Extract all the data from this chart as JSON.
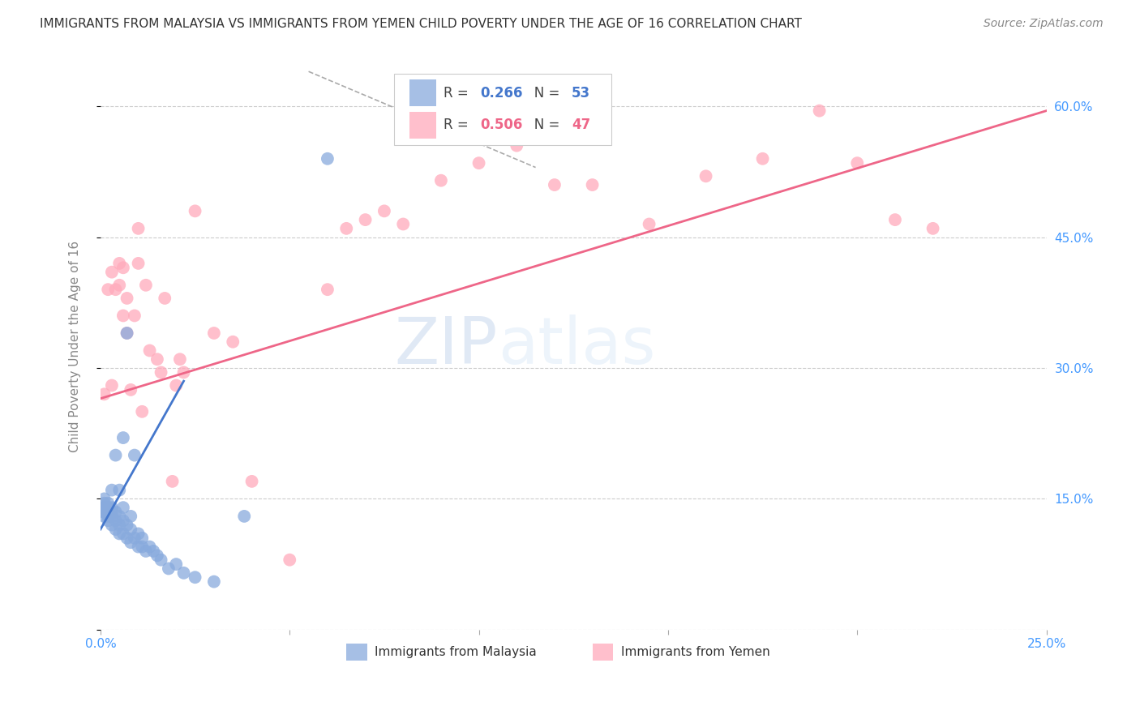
{
  "title": "IMMIGRANTS FROM MALAYSIA VS IMMIGRANTS FROM YEMEN CHILD POVERTY UNDER THE AGE OF 16 CORRELATION CHART",
  "source": "Source: ZipAtlas.com",
  "ylabel": "Child Poverty Under the Age of 16",
  "xlim": [
    0.0,
    0.25
  ],
  "ylim": [
    0.0,
    0.65
  ],
  "xticks": [
    0.0,
    0.05,
    0.1,
    0.15,
    0.2,
    0.25
  ],
  "xticklabels": [
    "0.0%",
    "",
    "",
    "",
    "",
    "25.0%"
  ],
  "yticks": [
    0.0,
    0.15,
    0.3,
    0.45,
    0.6
  ],
  "yticklabels": [
    "",
    "15.0%",
    "30.0%",
    "45.0%",
    "60.0%"
  ],
  "watermark_zip": "ZIP",
  "watermark_atlas": "atlas",
  "malaysia_color": "#88aadd",
  "yemen_color": "#ffaabb",
  "malaysia_line_color": "#4477cc",
  "yemen_line_color": "#ee6688",
  "malaysia_R": 0.266,
  "malaysia_N": 53,
  "yemen_R": 0.506,
  "yemen_N": 47,
  "malaysia_scatter_x": [
    0.0005,
    0.0008,
    0.001,
    0.001,
    0.001,
    0.001,
    0.001,
    0.002,
    0.002,
    0.002,
    0.002,
    0.002,
    0.003,
    0.003,
    0.003,
    0.003,
    0.003,
    0.004,
    0.004,
    0.004,
    0.004,
    0.005,
    0.005,
    0.005,
    0.005,
    0.006,
    0.006,
    0.006,
    0.006,
    0.007,
    0.007,
    0.007,
    0.008,
    0.008,
    0.008,
    0.009,
    0.009,
    0.01,
    0.01,
    0.011,
    0.011,
    0.012,
    0.013,
    0.014,
    0.015,
    0.016,
    0.018,
    0.02,
    0.022,
    0.025,
    0.03,
    0.038,
    0.06
  ],
  "malaysia_scatter_y": [
    0.135,
    0.14,
    0.13,
    0.135,
    0.14,
    0.145,
    0.15,
    0.125,
    0.13,
    0.135,
    0.14,
    0.145,
    0.12,
    0.13,
    0.135,
    0.14,
    0.16,
    0.115,
    0.125,
    0.135,
    0.2,
    0.11,
    0.12,
    0.13,
    0.16,
    0.11,
    0.125,
    0.14,
    0.22,
    0.105,
    0.12,
    0.34,
    0.1,
    0.115,
    0.13,
    0.105,
    0.2,
    0.095,
    0.11,
    0.095,
    0.105,
    0.09,
    0.095,
    0.09,
    0.085,
    0.08,
    0.07,
    0.075,
    0.065,
    0.06,
    0.055,
    0.13,
    0.54
  ],
  "yemen_scatter_x": [
    0.001,
    0.002,
    0.003,
    0.003,
    0.004,
    0.005,
    0.005,
    0.006,
    0.006,
    0.007,
    0.007,
    0.008,
    0.009,
    0.01,
    0.01,
    0.011,
    0.012,
    0.013,
    0.015,
    0.016,
    0.017,
    0.019,
    0.02,
    0.021,
    0.022,
    0.025,
    0.03,
    0.035,
    0.04,
    0.05,
    0.06,
    0.065,
    0.07,
    0.075,
    0.08,
    0.09,
    0.1,
    0.11,
    0.12,
    0.13,
    0.145,
    0.16,
    0.175,
    0.19,
    0.2,
    0.21,
    0.22
  ],
  "yemen_scatter_y": [
    0.27,
    0.39,
    0.28,
    0.41,
    0.39,
    0.395,
    0.42,
    0.36,
    0.415,
    0.34,
    0.38,
    0.275,
    0.36,
    0.42,
    0.46,
    0.25,
    0.395,
    0.32,
    0.31,
    0.295,
    0.38,
    0.17,
    0.28,
    0.31,
    0.295,
    0.48,
    0.34,
    0.33,
    0.17,
    0.08,
    0.39,
    0.46,
    0.47,
    0.48,
    0.465,
    0.515,
    0.535,
    0.555,
    0.51,
    0.51,
    0.465,
    0.52,
    0.54,
    0.595,
    0.535,
    0.47,
    0.46
  ],
  "malaysia_line_x": [
    0.0,
    0.022
  ],
  "malaysia_line_y": [
    0.115,
    0.285
  ],
  "yemen_line_x": [
    0.0,
    0.25
  ],
  "yemen_line_y": [
    0.265,
    0.595
  ],
  "dash_line_x": [
    0.055,
    0.115
  ],
  "dash_line_y": [
    0.64,
    0.53
  ],
  "background_color": "#ffffff",
  "grid_color": "#cccccc",
  "title_color": "#333333",
  "axis_color": "#4499ff",
  "ylabel_color": "#888888"
}
